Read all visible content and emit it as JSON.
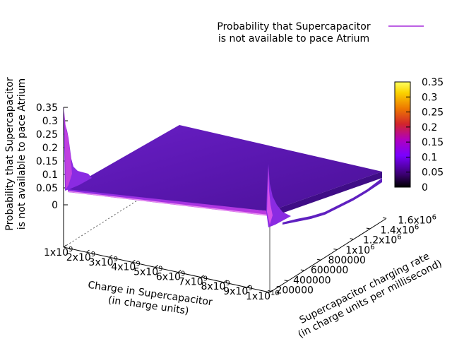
{
  "chart_data": {
    "type": "surface3d",
    "title": "",
    "legend": {
      "entries": [
        "Probability that Supercapacitor",
        "is not available to pace Atrium"
      ],
      "color": "#9400d3",
      "placement": "top-right"
    },
    "zlabel": [
      "Probability that Supercapacitor",
      "is not available to pace Atrium"
    ],
    "xlabel": [
      "Charge in Supercapacitor",
      "(in charge units)"
    ],
    "ylabel": [
      "Supercapacitor charging rate",
      "(in charge units per millisecond)"
    ],
    "z_ticks": [
      "0.35",
      "0.3",
      "0.25",
      "0.2",
      "0.15",
      "0.1",
      "0.05",
      "0"
    ],
    "x_ticks": [
      {
        "mant": "1x10",
        "exp": "9"
      },
      {
        "mant": "2x10",
        "exp": "9"
      },
      {
        "mant": "3x10",
        "exp": "9"
      },
      {
        "mant": "4x10",
        "exp": "9"
      },
      {
        "mant": "5x10",
        "exp": "9"
      },
      {
        "mant": "6x10",
        "exp": "9"
      },
      {
        "mant": "7x10",
        "exp": "9"
      },
      {
        "mant": "8x10",
        "exp": "9"
      },
      {
        "mant": "9x10",
        "exp": "9"
      },
      {
        "mant": "1x10",
        "exp": "10"
      }
    ],
    "y_ticks": [
      {
        "mant": "200000",
        "exp": ""
      },
      {
        "mant": "400000",
        "exp": ""
      },
      {
        "mant": "600000",
        "exp": ""
      },
      {
        "mant": "800000",
        "exp": ""
      },
      {
        "mant": "1x10",
        "exp": "6"
      },
      {
        "mant": "1.2x10",
        "exp": "6"
      },
      {
        "mant": "1.4x10",
        "exp": "6"
      },
      {
        "mant": "1.6x10",
        "exp": "6"
      }
    ],
    "colorbar": {
      "ticks": [
        "0.35",
        "0.3",
        "0.25",
        "0.2",
        "0.15",
        "0.1",
        "0.05",
        "0"
      ],
      "range": [
        0,
        0.35
      ],
      "palette": [
        "#000000",
        "#3a0070",
        "#7a00ff",
        "#b000c0",
        "#d2252b",
        "#ee7a00",
        "#fbd400",
        "#ffff60"
      ]
    },
    "zlim": [
      0,
      0.35
    ],
    "xlim": [
      1000000000,
      10000000000
    ],
    "ylim": [
      200000,
      1600000
    ],
    "surface": {
      "base_probability": 0.04,
      "peak_at_x_min": 0.33,
      "peak_at_x_max": 0.3
    }
  }
}
